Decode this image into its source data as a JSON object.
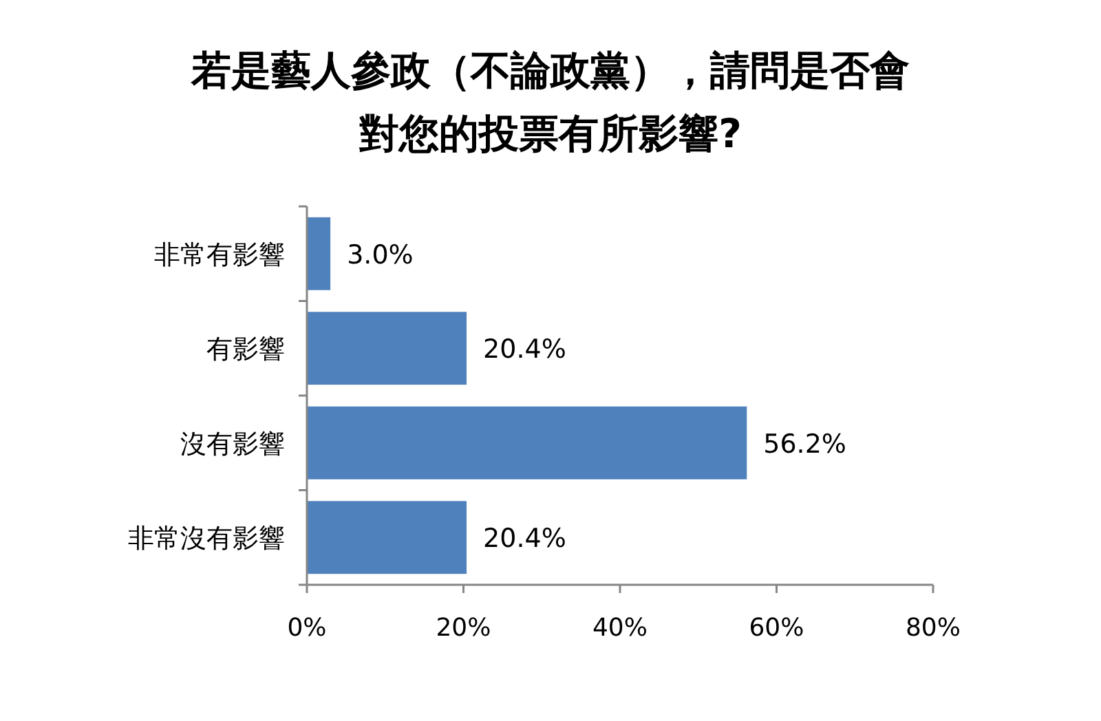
{
  "chart_data": {
    "type": "bar",
    "orientation": "horizontal",
    "title": "若是藝人參政（不論政黨），請問是否會對您的投票有所影響?",
    "categories": [
      "非常有影響",
      "有影響",
      "沒有影響",
      "非常沒有影響"
    ],
    "values": [
      3.0,
      20.4,
      56.2,
      20.4
    ],
    "value_labels": [
      "3.0%",
      "20.4%",
      "56.2%",
      "20.4%"
    ],
    "color": "#4f81bd",
    "xlim": [
      0,
      80
    ],
    "xticks": [
      {
        "value": 0,
        "label": "0%"
      },
      {
        "value": 20,
        "label": "20%"
      },
      {
        "value": 40,
        "label": "40%"
      },
      {
        "value": 60,
        "label": "60%"
      },
      {
        "value": 80,
        "label": "80%"
      }
    ],
    "grid": false,
    "legend": false
  }
}
